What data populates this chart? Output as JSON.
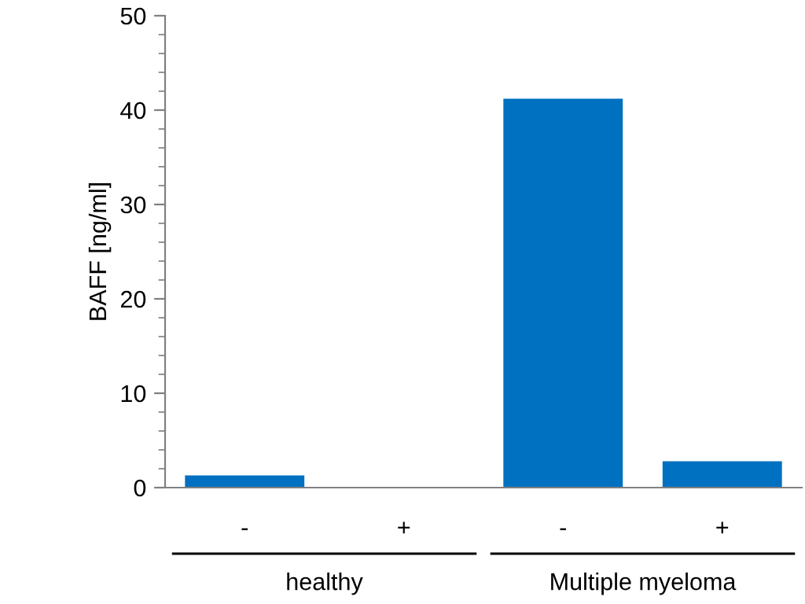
{
  "chart_data": {
    "type": "bar",
    "ylabel": "BAFF [ng/ml]",
    "categories": [
      "-",
      "+",
      "-",
      "+"
    ],
    "values": [
      1.3,
      0,
      41.2,
      2.8
    ],
    "color": "#0070c0",
    "ylim": [
      0,
      50
    ],
    "yticks": [
      0,
      10,
      20,
      30,
      40,
      50
    ],
    "annotations": [
      "healthy",
      "Multiple myeloma"
    ],
    "grid": false
  }
}
